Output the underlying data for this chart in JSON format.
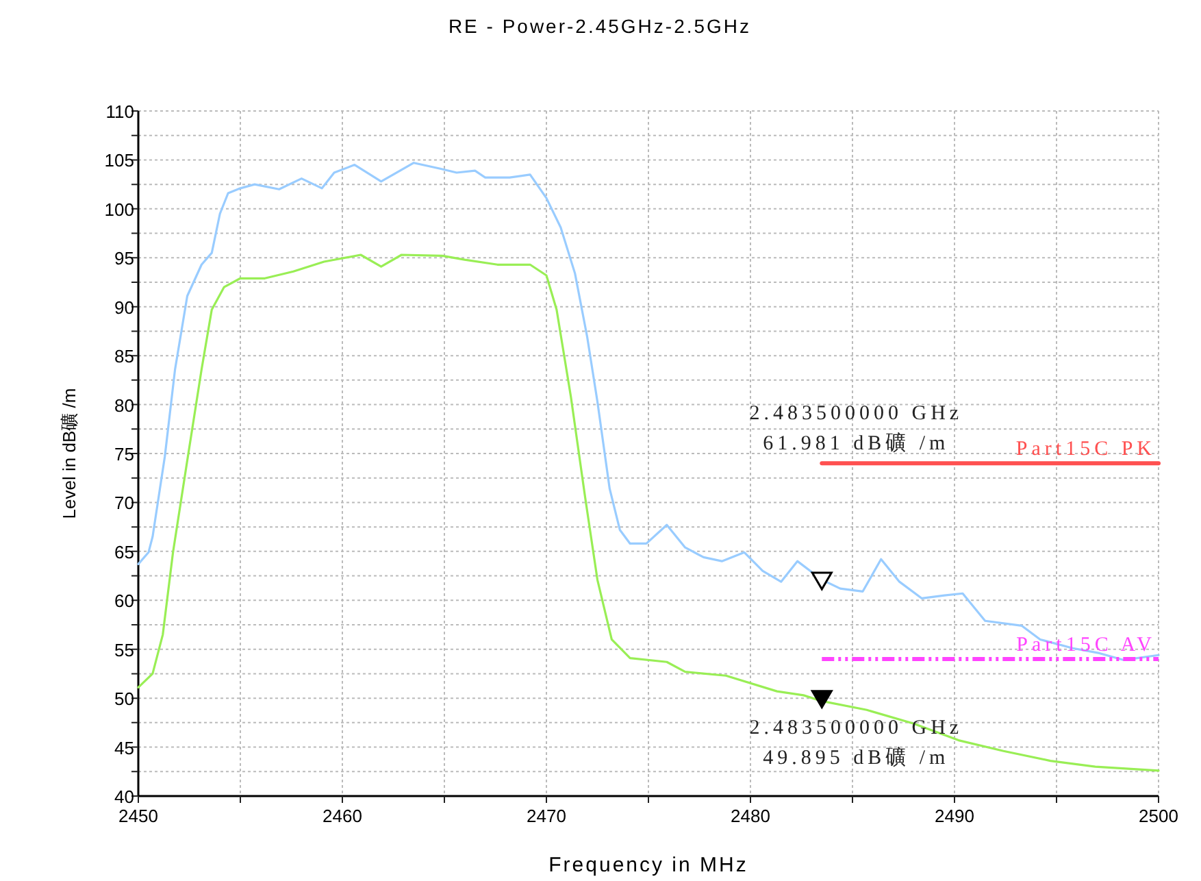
{
  "chart_data": {
    "type": "line",
    "title": "RE - Power-2.45GHz-2.5GHz",
    "xlabel": "Frequency in MHz",
    "ylabel": "Level in dB礦 /m",
    "xlim": [
      2450,
      2500
    ],
    "ylim": [
      40,
      110
    ],
    "xticks": [
      2450,
      {
        "value": 2455,
        "label": null
      },
      2460,
      {
        "value": 2465,
        "label": null
      },
      2470,
      {
        "value": 2475,
        "label": null
      },
      2480,
      {
        "value": 2485,
        "label": null
      },
      2490,
      {
        "value": 2495,
        "label": null
      },
      2500
    ],
    "yticks": [
      40,
      {
        "value": 42.5,
        "label": null
      },
      45,
      {
        "value": 47.5,
        "label": null
      },
      50,
      {
        "value": 52.5,
        "label": null
      },
      55,
      {
        "value": 57.5,
        "label": null
      },
      60,
      {
        "value": 62.5,
        "label": null
      },
      65,
      {
        "value": 67.5,
        "label": null
      },
      70,
      {
        "value": 72.5,
        "label": null
      },
      75,
      {
        "value": 77.5,
        "label": null
      },
      80,
      {
        "value": 82.5,
        "label": null
      },
      85,
      {
        "value": 87.5,
        "label": null
      },
      90,
      {
        "value": 92.5,
        "label": null
      },
      95,
      {
        "value": 97.5,
        "label": null
      },
      100,
      {
        "value": 102.5,
        "label": null
      },
      105,
      {
        "value": 107.5,
        "label": null
      },
      110
    ],
    "grid": true,
    "legend": false,
    "series": [
      {
        "color": "#99ccff",
        "x": [
          2450,
          2450.5,
          2450.7,
          2451.3,
          2451.8,
          2452.4,
          2453.1,
          2453.6,
          2454.0,
          2454.4,
          2455,
          2455.7,
          2456.9,
          2458,
          2459,
          2459.6,
          2460.6,
          2461.9,
          2463.5,
          2464.8,
          2465.6,
          2466.5,
          2467.0,
          2468.2,
          2469.2,
          2470,
          2470.7,
          2471.4,
          2472,
          2472.5,
          2473.1,
          2473.6,
          2474.1,
          2474.9,
          2475.9,
          2476.8,
          2477.7,
          2478.6,
          2479.7,
          2480.6,
          2481.5,
          2482.3,
          2483.5,
          2484.4,
          2485.5,
          2486.4,
          2487.3,
          2488.4,
          2489.5,
          2490.4,
          2491.5,
          2493.3,
          2494.2,
          2495.8,
          2497.1,
          2498.3,
          2500
        ],
        "values": [
          63.7,
          64.9,
          66.5,
          74.7,
          83.6,
          91.1,
          94.3,
          95.5,
          99.5,
          101.6,
          102.1,
          102.5,
          102.0,
          103.1,
          102.1,
          103.7,
          104.5,
          102.8,
          104.7,
          104.1,
          103.7,
          103.9,
          103.2,
          103.2,
          103.5,
          101.1,
          98.1,
          93.4,
          86.9,
          80.3,
          71.4,
          67.2,
          65.8,
          65.8,
          67.7,
          65.4,
          64.4,
          64.0,
          64.9,
          63.0,
          61.9,
          64.0,
          62.1,
          61.2,
          60.9,
          64.2,
          61.9,
          60.2,
          60.5,
          60.7,
          57.9,
          57.4,
          56.0,
          55.1,
          54.6,
          53.9,
          54.4
        ]
      },
      {
        "color": "#99ee55",
        "x": [
          2450,
          2450.7,
          2451.2,
          2451.7,
          2452.4,
          2453.1,
          2453.6,
          2454.2,
          2455,
          2456.2,
          2457.6,
          2459.1,
          2460.9,
          2461.9,
          2462.9,
          2464.9,
          2466.0,
          2467.6,
          2469.2,
          2470,
          2470.5,
          2471.2,
          2471.9,
          2472.5,
          2473.2,
          2474.1,
          2475.9,
          2476.8,
          2478.8,
          2481.3,
          2482.6,
          2483.5,
          2485.7,
          2488.0,
          2490.2,
          2492.4,
          2494.7,
          2496.9,
          2500
        ],
        "values": [
          51.1,
          52.5,
          56.5,
          64.9,
          74.3,
          83.6,
          89.7,
          92.0,
          92.9,
          92.9,
          93.6,
          94.6,
          95.3,
          94.1,
          95.3,
          95.2,
          94.8,
          94.3,
          94.3,
          93.2,
          89.7,
          80.8,
          70.5,
          62.1,
          56.0,
          54.1,
          53.7,
          52.7,
          52.3,
          50.7,
          50.3,
          49.7,
          48.8,
          47.4,
          45.7,
          44.6,
          43.6,
          43.0,
          42.6
        ]
      },
      {
        "name": "Part15C PK",
        "color": "#ff5050",
        "line_style": "solid",
        "x": [
          2483.5,
          2500
        ],
        "values": [
          74,
          74
        ]
      },
      {
        "name": "Part15C AV",
        "color": "#ff44ff",
        "line_style": "dashed",
        "x": [
          2483.5,
          2500
        ],
        "values": [
          54,
          54
        ]
      },
      {
        "type": "scatter",
        "marker": "triangle",
        "color": "#ffffff",
        "x": [
          2483.5
        ],
        "values": [
          61.981
        ]
      },
      {
        "type": "scatter",
        "marker": "triangle",
        "color": "#000000",
        "x": [
          2483.5
        ],
        "values": [
          49.895
        ]
      }
    ],
    "annotations": [
      "2.483500000 GHz\n61.981 dB礦 /m",
      "2.483500000 GHz\n49.895 dB礦 /m"
    ]
  }
}
